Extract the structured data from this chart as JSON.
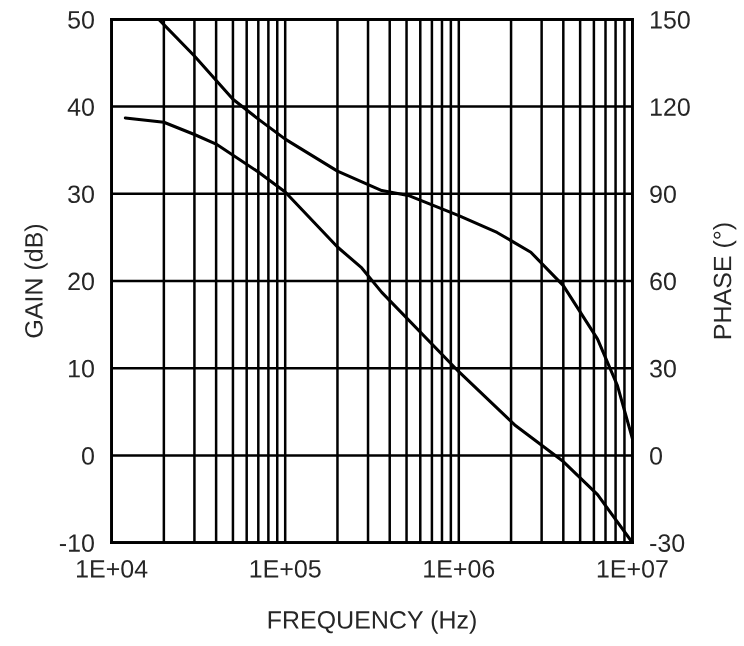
{
  "chart_data": {
    "type": "line",
    "xlabel": "FREQUENCY (Hz)",
    "ylabel": "GAIN (dB)",
    "y2label": "PHASE (°)",
    "log": "x",
    "grid": true,
    "marker": "none",
    "line_style": "solid",
    "xlim": [
      10000,
      10000000
    ],
    "xticks": [
      {
        "value": 10000,
        "label": "1E+04"
      },
      {
        "value": 20000,
        "label": null
      },
      {
        "value": 30000,
        "label": null
      },
      {
        "value": 40000,
        "label": null
      },
      {
        "value": 50000,
        "label": null
      },
      {
        "value": 60000,
        "label": null
      },
      {
        "value": 70000,
        "label": null
      },
      {
        "value": 80000,
        "label": null
      },
      {
        "value": 90000,
        "label": null
      },
      {
        "value": 100000,
        "label": "1E+05"
      },
      {
        "value": 200000,
        "label": null
      },
      {
        "value": 300000,
        "label": null
      },
      {
        "value": 400000,
        "label": null
      },
      {
        "value": 500000,
        "label": null
      },
      {
        "value": 600000,
        "label": null
      },
      {
        "value": 700000,
        "label": null
      },
      {
        "value": 800000,
        "label": null
      },
      {
        "value": 900000,
        "label": null
      },
      {
        "value": 1000000,
        "label": "1E+06"
      },
      {
        "value": 2000000,
        "label": null
      },
      {
        "value": 3000000,
        "label": null
      },
      {
        "value": 4000000,
        "label": null
      },
      {
        "value": 5000000,
        "label": null
      },
      {
        "value": 6000000,
        "label": null
      },
      {
        "value": 7000000,
        "label": null
      },
      {
        "value": 8000000,
        "label": null
      },
      {
        "value": 9000000,
        "label": null
      },
      {
        "value": 10000000,
        "label": "1E+07"
      }
    ],
    "ylim": [
      -10,
      50
    ],
    "yticks": [
      -10,
      0,
      10,
      20,
      30,
      40,
      50
    ],
    "y2lim": [
      -30,
      150
    ],
    "y2ticks": [
      -30,
      0,
      30,
      60,
      90,
      120,
      150
    ],
    "series": [
      {
        "color": "#000000",
        "axis": "y",
        "x": [
          12000,
          20000,
          30000,
          40000,
          70000,
          100000,
          200000,
          276000,
          360000,
          1000000,
          2100000,
          4000000,
          6300000,
          10000000
        ],
        "values": [
          38.7,
          38.2,
          36.8,
          35.7,
          32.5,
          30.2,
          23.9,
          21.5,
          18.7,
          9.6,
          3.5,
          -0.7,
          -4.5,
          -10
        ]
      },
      {
        "color": "#000000",
        "axis": "y2",
        "x": [
          18700,
          30000,
          50000,
          70000,
          100000,
          200000,
          360000,
          520000,
          1000000,
          1660000,
          2600000,
          4000000,
          6300000,
          8200000,
          10000000
        ],
        "values": [
          150,
          137.4,
          122.5,
          115.7,
          108.8,
          97.8,
          91.1,
          89.3,
          82.5,
          76.7,
          69.9,
          58.4,
          40,
          24,
          5.8
        ]
      }
    ]
  }
}
